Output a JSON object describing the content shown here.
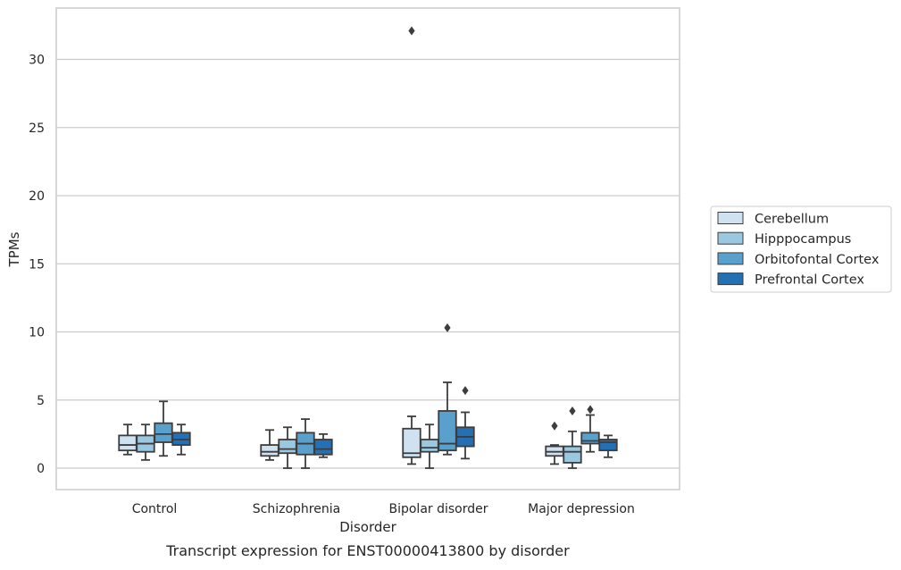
{
  "chart_data": {
    "type": "box",
    "title": "",
    "caption": "Transcript expression for ENST00000413800 by disorder",
    "xlabel": "Disorder",
    "ylabel": "TPMs",
    "ylim": [
      -1.5,
      33.5
    ],
    "yticks": [
      0,
      5,
      10,
      15,
      20,
      25,
      30
    ],
    "ytick_labels": [
      "0",
      "5",
      "10",
      "15",
      "20",
      "25",
      "30"
    ],
    "grid": "horizontal",
    "legend_position": "right",
    "categories": [
      "Control",
      "Schizophrenia",
      "Bipolar disorder",
      "Major depression"
    ],
    "series": [
      {
        "name": "Cerebellum",
        "color": "#d0e2f2",
        "boxes": [
          {
            "whislo": 1.0,
            "q1": 1.3,
            "med": 1.7,
            "q3": 2.4,
            "whishi": 3.2,
            "fliers": []
          },
          {
            "whislo": 0.6,
            "q1": 0.9,
            "med": 1.2,
            "q3": 1.7,
            "whishi": 2.8,
            "fliers": []
          },
          {
            "whislo": 0.3,
            "q1": 0.8,
            "med": 1.1,
            "q3": 2.9,
            "whishi": 3.8,
            "fliers": [
              32.1
            ]
          },
          {
            "whislo": 0.3,
            "q1": 0.9,
            "med": 1.2,
            "q3": 1.6,
            "whishi": 1.7,
            "fliers": [
              3.1
            ]
          }
        ]
      },
      {
        "name": "Hipppocampus",
        "color": "#9ac8e0",
        "boxes": [
          {
            "whislo": 0.6,
            "q1": 1.2,
            "med": 1.8,
            "q3": 2.4,
            "whishi": 3.2,
            "fliers": []
          },
          {
            "whislo": 0.0,
            "q1": 1.1,
            "med": 1.4,
            "q3": 2.1,
            "whishi": 3.0,
            "fliers": []
          },
          {
            "whislo": 0.0,
            "q1": 1.2,
            "med": 1.5,
            "q3": 2.1,
            "whishi": 3.2,
            "fliers": []
          },
          {
            "whislo": 0.0,
            "q1": 0.4,
            "med": 1.2,
            "q3": 1.6,
            "whishi": 2.7,
            "fliers": [
              4.2
            ]
          }
        ]
      },
      {
        "name": "Orbitofontal Cortex",
        "color": "#5aa0cd",
        "boxes": [
          {
            "whislo": 0.9,
            "q1": 1.9,
            "med": 2.5,
            "q3": 3.3,
            "whishi": 4.9,
            "fliers": []
          },
          {
            "whislo": 0.0,
            "q1": 1.0,
            "med": 1.8,
            "q3": 2.6,
            "whishi": 3.6,
            "fliers": []
          },
          {
            "whislo": 1.0,
            "q1": 1.3,
            "med": 1.8,
            "q3": 4.2,
            "whishi": 6.3,
            "fliers": [
              10.3
            ]
          },
          {
            "whislo": 1.2,
            "q1": 1.8,
            "med": 2.0,
            "q3": 2.6,
            "whishi": 3.9,
            "fliers": [
              4.3
            ]
          }
        ]
      },
      {
        "name": "Prefrontal Cortex",
        "color": "#2470b4",
        "boxes": [
          {
            "whislo": 1.0,
            "q1": 1.7,
            "med": 2.1,
            "q3": 2.6,
            "whishi": 3.2,
            "fliers": []
          },
          {
            "whislo": 0.8,
            "q1": 1.0,
            "med": 1.4,
            "q3": 2.1,
            "whishi": 2.5,
            "fliers": []
          },
          {
            "whislo": 0.7,
            "q1": 1.6,
            "med": 2.3,
            "q3": 3.0,
            "whishi": 4.1,
            "fliers": [
              5.7
            ]
          },
          {
            "whislo": 0.8,
            "q1": 1.3,
            "med": 1.9,
            "q3": 2.1,
            "whishi": 2.4,
            "fliers": []
          }
        ]
      }
    ]
  }
}
